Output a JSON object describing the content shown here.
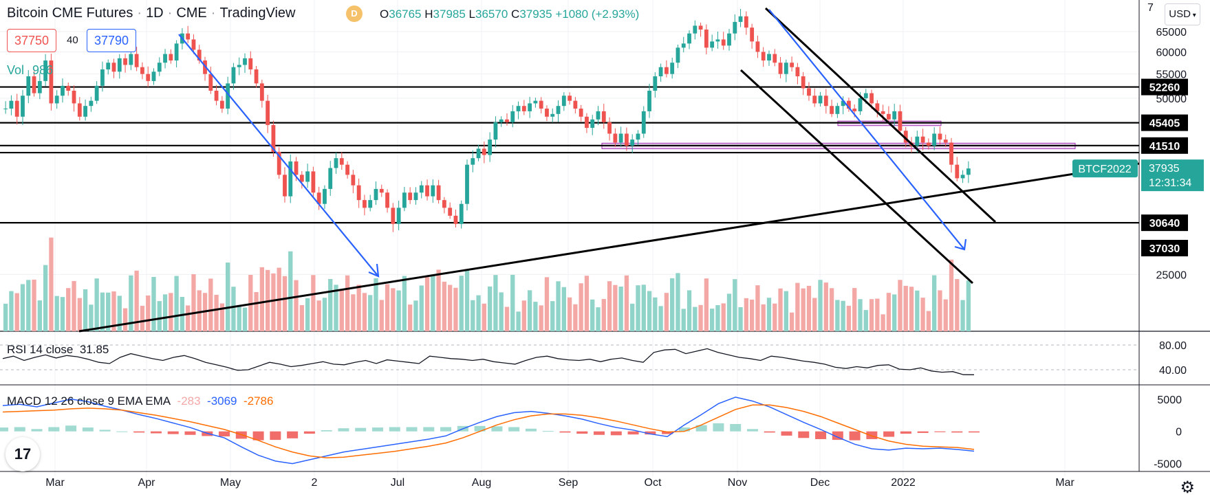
{
  "header": {
    "title": "Bitcoin CME Futures",
    "interval": "1D",
    "exchange": "CME",
    "source": "TradingView",
    "badge": "D",
    "ohlc": {
      "o_label": "O",
      "o": "36765",
      "h_label": "H",
      "h": "37985",
      "l_label": "L",
      "l": "36570",
      "c_label": "C",
      "c": "37935",
      "change": "+1080 (+2.93%)"
    }
  },
  "order": {
    "sell": "37750",
    "qty": "40",
    "buy": "37790"
  },
  "volume": {
    "label": "Vol",
    "value": "986"
  },
  "currency_selector": "USD",
  "logo_text": "17",
  "settings_icon": "gear-icon",
  "colors": {
    "up": "#26a69a",
    "down": "#ef5350",
    "vol_up": "#8fd3c9",
    "vol_down": "#f4a8a6",
    "blue": "#2962ff",
    "macd_line": "#2962ff",
    "signal_line": "#ff6d00",
    "level": "#000000",
    "zone": "#ce93d8"
  },
  "chart_data": {
    "type": "candlestick",
    "x_tick_labels": [
      "Mar",
      "Apr",
      "May",
      "2",
      "Jul",
      "Aug",
      "Sep",
      "Oct",
      "Nov",
      "Dec",
      "2022",
      "Mar"
    ],
    "y_tick_labels": [
      "65000",
      "60000",
      "55000",
      "50000",
      "25000"
    ],
    "y_top_partial": "7",
    "yscale": "log",
    "ylim": [
      20000,
      72000
    ],
    "price_path": [
      48000,
      49500,
      46500,
      50500,
      54500,
      51000,
      53500,
      58000,
      49000,
      50500,
      52500,
      51500,
      49000,
      46500,
      48500,
      49500,
      52500,
      56000,
      57500,
      55500,
      58500,
      57000,
      59500,
      56500,
      55000,
      53500,
      55500,
      57500,
      59500,
      58000,
      62000,
      64500,
      63000,
      60500,
      58000,
      55000,
      51500,
      49500,
      48000,
      53000,
      56500,
      57000,
      58500,
      56000,
      53000,
      49500,
      45000,
      40500,
      37000,
      34000,
      39000,
      37000,
      36000,
      37500,
      34500,
      33000,
      35000,
      38000,
      39500,
      38500,
      37000,
      35500,
      33500,
      32500,
      33500,
      35000,
      34500,
      32500,
      30500,
      32500,
      34500,
      33500,
      34500,
      35500,
      34000,
      35500,
      33500,
      32500,
      31500,
      30500,
      33000,
      38500,
      39500,
      41000,
      40000,
      42500,
      45500,
      46000,
      45500,
      47500,
      48500,
      47500,
      49000,
      49500,
      48000,
      46500,
      47000,
      48500,
      50500,
      49500,
      48000,
      46500,
      44500,
      46000,
      47500,
      45500,
      43500,
      42000,
      43500,
      41500,
      42500,
      43500,
      47500,
      51500,
      54500,
      56500,
      55000,
      57500,
      61000,
      62000,
      64500,
      66500,
      65500,
      61000,
      62500,
      63000,
      61500,
      64500,
      67500,
      69000,
      66000,
      62500,
      60000,
      58000,
      59500,
      57500,
      55000,
      57500,
      56500,
      54500,
      52000,
      50500,
      49000,
      50500,
      48500,
      47000,
      48500,
      49500,
      48000,
      47500,
      50000,
      51000,
      49000,
      47500,
      47000,
      46000,
      47500,
      44000,
      42000,
      41500,
      43000,
      42000,
      41500,
      43500,
      42500,
      42000,
      38500,
      36500,
      37000,
      37935
    ],
    "last_open": 36765,
    "last_high": 37985,
    "last_low": 36570,
    "last_close": 37935,
    "horizontal_levels": [
      52260,
      45405,
      41510,
      37030,
      30640
    ],
    "price_labels": [
      {
        "value": 52260,
        "label": "52260"
      },
      {
        "value": 45405,
        "label": "45405"
      },
      {
        "value": 41510,
        "label": "41510"
      },
      {
        "value": 37030,
        "label": "37030"
      },
      {
        "value": 30640,
        "label": "30640"
      }
    ],
    "current_price_label": {
      "symbol": "BTCF2022",
      "price": "37935",
      "countdown": "12:31:34"
    },
    "volume_note": "histogram colored by candle direction",
    "rsi": {
      "label": "RSI 14 close",
      "value": "31.85",
      "ticks": [
        "80.00",
        "40.00"
      ],
      "levels": [
        80,
        40
      ],
      "ylim": [
        20,
        100
      ],
      "values": [
        58,
        62,
        55,
        60,
        64,
        59,
        63,
        61,
        57,
        52,
        50,
        60,
        66,
        62,
        58,
        55,
        60,
        63,
        58,
        52,
        48,
        44,
        39,
        40,
        46,
        52,
        49,
        45,
        47,
        50,
        53,
        49,
        48,
        52,
        55,
        50,
        56,
        54,
        52,
        50,
        62,
        60,
        58,
        57,
        55,
        57,
        53,
        51,
        49,
        55,
        60,
        62,
        58,
        56,
        55,
        57,
        53,
        57,
        59,
        55,
        52,
        68,
        72,
        73,
        66,
        70,
        74,
        68,
        64,
        60,
        58,
        55,
        62,
        60,
        57,
        54,
        52,
        49,
        44,
        42,
        45,
        43,
        47,
        48,
        41,
        40,
        43,
        38,
        36,
        37,
        32,
        31.85
      ]
    },
    "macd": {
      "label": "MACD 12 26 close 9 EMA EMA",
      "hist_value": "-283",
      "macd_value": "-3069",
      "signal_value": "-2786",
      "ticks": [
        "5000",
        "0",
        "-5000"
      ],
      "ylim": [
        -6000,
        7000
      ],
      "macd_values": [
        4000,
        4200,
        3800,
        4400,
        5000,
        4600,
        3900,
        3300,
        2600,
        2000,
        1300,
        600,
        -300,
        -1000,
        -2400,
        -3700,
        -4600,
        -5000,
        -4400,
        -3800,
        -3200,
        -2800,
        -2400,
        -2000,
        -1600,
        -1200,
        -700,
        400,
        1400,
        2300,
        2900,
        3100,
        2800,
        2400,
        1900,
        1200,
        600,
        200,
        -400,
        -800,
        1000,
        2600,
        4300,
        5300,
        4700,
        3800,
        2600,
        1400,
        300,
        -900,
        -2000,
        -2700,
        -2900,
        -2600,
        -2700,
        -2600,
        -2800,
        -3069
      ],
      "signal_values": [
        3000,
        3100,
        3200,
        3300,
        3500,
        3600,
        3500,
        3300,
        2900,
        2500,
        2000,
        1500,
        900,
        300,
        -500,
        -1400,
        -2400,
        -3200,
        -3800,
        -4100,
        -4000,
        -3700,
        -3400,
        -3100,
        -2700,
        -2300,
        -1800,
        -1000,
        0,
        1000,
        1800,
        2400,
        2700,
        2700,
        2500,
        2100,
        1600,
        1000,
        400,
        -100,
        0,
        1000,
        2200,
        3400,
        4100,
        4100,
        3700,
        3100,
        2300,
        1300,
        300,
        -700,
        -1500,
        -2000,
        -2300,
        -2400,
        -2500,
        -2786
      ]
    }
  }
}
